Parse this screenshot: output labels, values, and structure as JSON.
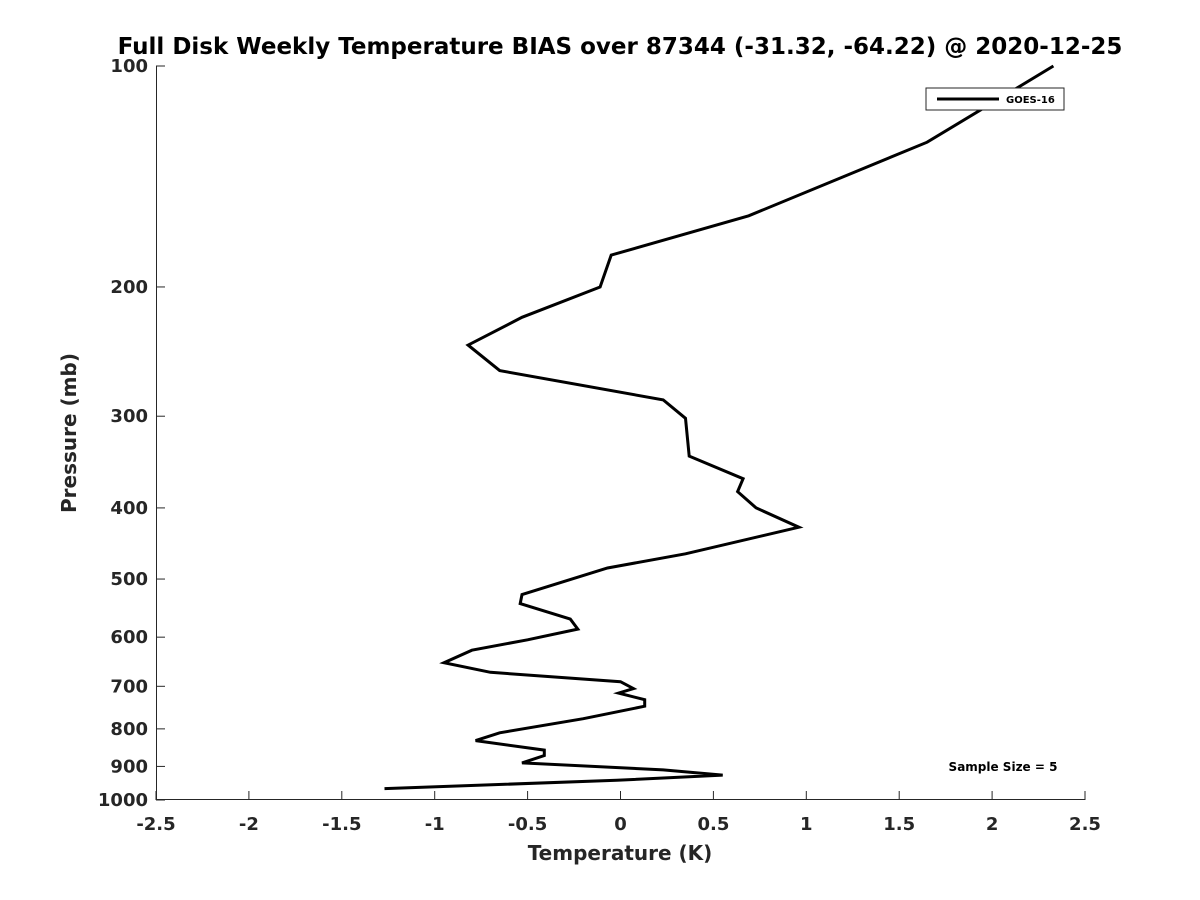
{
  "chart_data": {
    "type": "line",
    "title": "Full Disk Weekly Temperature BIAS over 87344 (-31.32, -64.22) @ 2020-12-25",
    "xlabel": "Temperature (K)",
    "ylabel": "Pressure (mb)",
    "xlim": [
      -2.5,
      2.5
    ],
    "ylim": [
      100,
      1000
    ],
    "y_scale": "log",
    "y_reversed": true,
    "grid": false,
    "x_ticks": [
      -2.5,
      -2,
      -1.5,
      -1,
      -0.5,
      0,
      0.5,
      1,
      1.5,
      2,
      2.5
    ],
    "x_tick_labels": [
      "-2.5",
      "-2",
      "-1.5",
      "-1",
      "-0.5",
      "0",
      "0.5",
      "1",
      "1.5",
      "2",
      "2.5"
    ],
    "y_ticks": [
      100,
      200,
      300,
      400,
      500,
      600,
      700,
      800,
      900,
      1000
    ],
    "y_tick_labels": [
      "100",
      "200",
      "300",
      "400",
      "500",
      "600",
      "700",
      "800",
      "900",
      "1000"
    ],
    "legend": {
      "placement": "top-right",
      "entries": [
        "GOES-16"
      ]
    },
    "annotation": "Sample Size = 5",
    "series": [
      {
        "name": "GOES-16",
        "color": "#000000",
        "points": [
          {
            "x": 2.33,
            "y": 100
          },
          {
            "x": 1.65,
            "y": 127
          },
          {
            "x": 0.69,
            "y": 160
          },
          {
            "x": -0.05,
            "y": 181
          },
          {
            "x": -0.11,
            "y": 200
          },
          {
            "x": -0.53,
            "y": 220
          },
          {
            "x": -0.82,
            "y": 240
          },
          {
            "x": -0.65,
            "y": 260
          },
          {
            "x": 0.23,
            "y": 285
          },
          {
            "x": 0.35,
            "y": 302
          },
          {
            "x": 0.37,
            "y": 340
          },
          {
            "x": 0.66,
            "y": 365
          },
          {
            "x": 0.63,
            "y": 380
          },
          {
            "x": 0.73,
            "y": 400
          },
          {
            "x": 0.96,
            "y": 425
          },
          {
            "x": 0.35,
            "y": 462
          },
          {
            "x": -0.07,
            "y": 483
          },
          {
            "x": -0.53,
            "y": 525
          },
          {
            "x": -0.54,
            "y": 540
          },
          {
            "x": -0.27,
            "y": 567
          },
          {
            "x": -0.23,
            "y": 585
          },
          {
            "x": -0.5,
            "y": 605
          },
          {
            "x": -0.8,
            "y": 625
          },
          {
            "x": -0.95,
            "y": 650
          },
          {
            "x": -0.7,
            "y": 670
          },
          {
            "x": 0.0,
            "y": 690
          },
          {
            "x": 0.07,
            "y": 705
          },
          {
            "x": -0.01,
            "y": 715
          },
          {
            "x": 0.13,
            "y": 730
          },
          {
            "x": 0.13,
            "y": 745
          },
          {
            "x": -0.2,
            "y": 775
          },
          {
            "x": -0.65,
            "y": 810
          },
          {
            "x": -0.78,
            "y": 830
          },
          {
            "x": -0.41,
            "y": 855
          },
          {
            "x": -0.41,
            "y": 870
          },
          {
            "x": -0.53,
            "y": 890
          },
          {
            "x": 0.23,
            "y": 910
          },
          {
            "x": 0.55,
            "y": 925
          },
          {
            "x": -0.02,
            "y": 940
          },
          {
            "x": -1.27,
            "y": 965
          }
        ]
      }
    ]
  }
}
